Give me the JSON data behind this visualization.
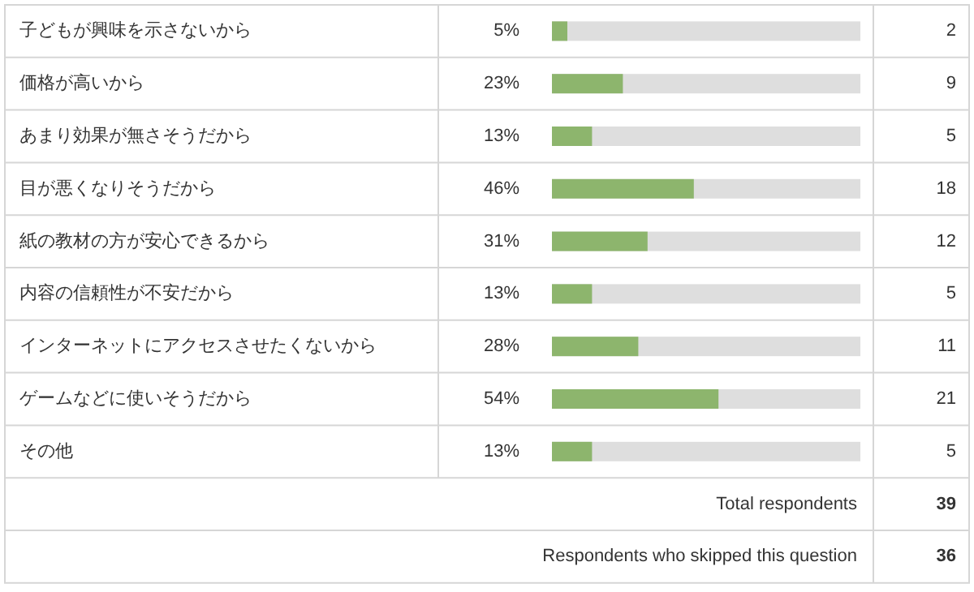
{
  "chart_data": [
    {
      "type": "bar",
      "orientation": "horizontal",
      "xlim": [
        0,
        100
      ],
      "categories": [
        "子どもが興味を示さないから",
        "価格が高いから",
        "あまり効果が無さそうだから",
        "目が悪くなりそうだから",
        "紙の教材の方が安心できるから",
        "内容の信頼性が不安だから",
        "インターネットにアクセスさせたくないから",
        "ゲームなどに使いそうだから",
        "その他"
      ],
      "series": [
        {
          "color": "#8db56d",
          "values": [
            5,
            23,
            13,
            46,
            31,
            13,
            28,
            54,
            13
          ],
          "value_labels": [
            "5%",
            "23%",
            "13%",
            "46%",
            "31%",
            "13%",
            "28%",
            "54%",
            "13%"
          ]
        }
      ]
    },
    {
      "type": "other",
      "values": [
        2,
        9,
        5,
        18,
        12,
        5,
        11,
        21,
        5
      ],
      "data_labels": true,
      "annotations": [
        "Total respondents",
        "39",
        "Respondents who skipped this question",
        "36"
      ]
    }
  ]
}
